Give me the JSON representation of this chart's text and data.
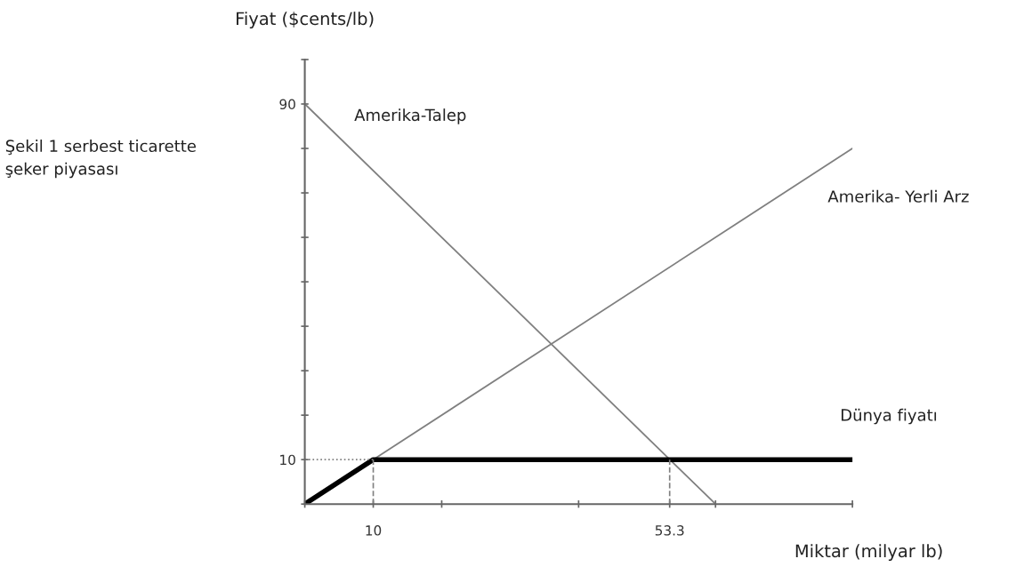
{
  "chart_data": {
    "type": "line",
    "title": "Şekil 1 serbest ticarette\nşeker piyasası",
    "xlabel": "Miktar (milyar lb)",
    "ylabel": "Fiyat ($cents/lb)",
    "xlim": [
      0,
      80
    ],
    "ylim": [
      0,
      100
    ],
    "xticks": [
      {
        "value": 0,
        "label": null
      },
      10,
      {
        "value": 20,
        "label": null
      },
      {
        "value": 40,
        "label": null
      },
      53.3,
      {
        "value": 60,
        "label": null
      },
      {
        "value": 80,
        "label": null
      }
    ],
    "yticks": [
      {
        "value": 0,
        "label": null
      },
      10,
      {
        "value": 20,
        "label": null
      },
      {
        "value": 30,
        "label": null
      },
      {
        "value": 40,
        "label": null
      },
      {
        "value": 50,
        "label": null
      },
      {
        "value": 60,
        "label": null
      },
      {
        "value": 70,
        "label": null
      },
      {
        "value": 80,
        "label": null
      },
      90,
      {
        "value": 100,
        "label": null
      }
    ],
    "series": [
      {
        "name": "Amerika-Talep",
        "color": "#808080",
        "x": [
          0,
          60
        ],
        "values": [
          90,
          0
        ]
      },
      {
        "name": "Amerika- Yerli Arz",
        "color": "#808080",
        "x": [
          0,
          80
        ],
        "values": [
          0,
          80
        ]
      },
      {
        "name": "Dünya fiyatı",
        "color": "#000000",
        "x": [
          0,
          10,
          80
        ],
        "values": [
          0,
          10,
          10
        ]
      }
    ],
    "ref_lines": [
      {
        "axis": "y",
        "value": 10,
        "line_style": "dotted",
        "color": "#808080"
      },
      {
        "axis": "x",
        "value": 10,
        "line_style": "dashed",
        "color": "#808080"
      },
      {
        "axis": "x",
        "value": 53.3,
        "line_style": "dashed",
        "color": "#808080"
      }
    ],
    "grid": false,
    "legend": false
  }
}
